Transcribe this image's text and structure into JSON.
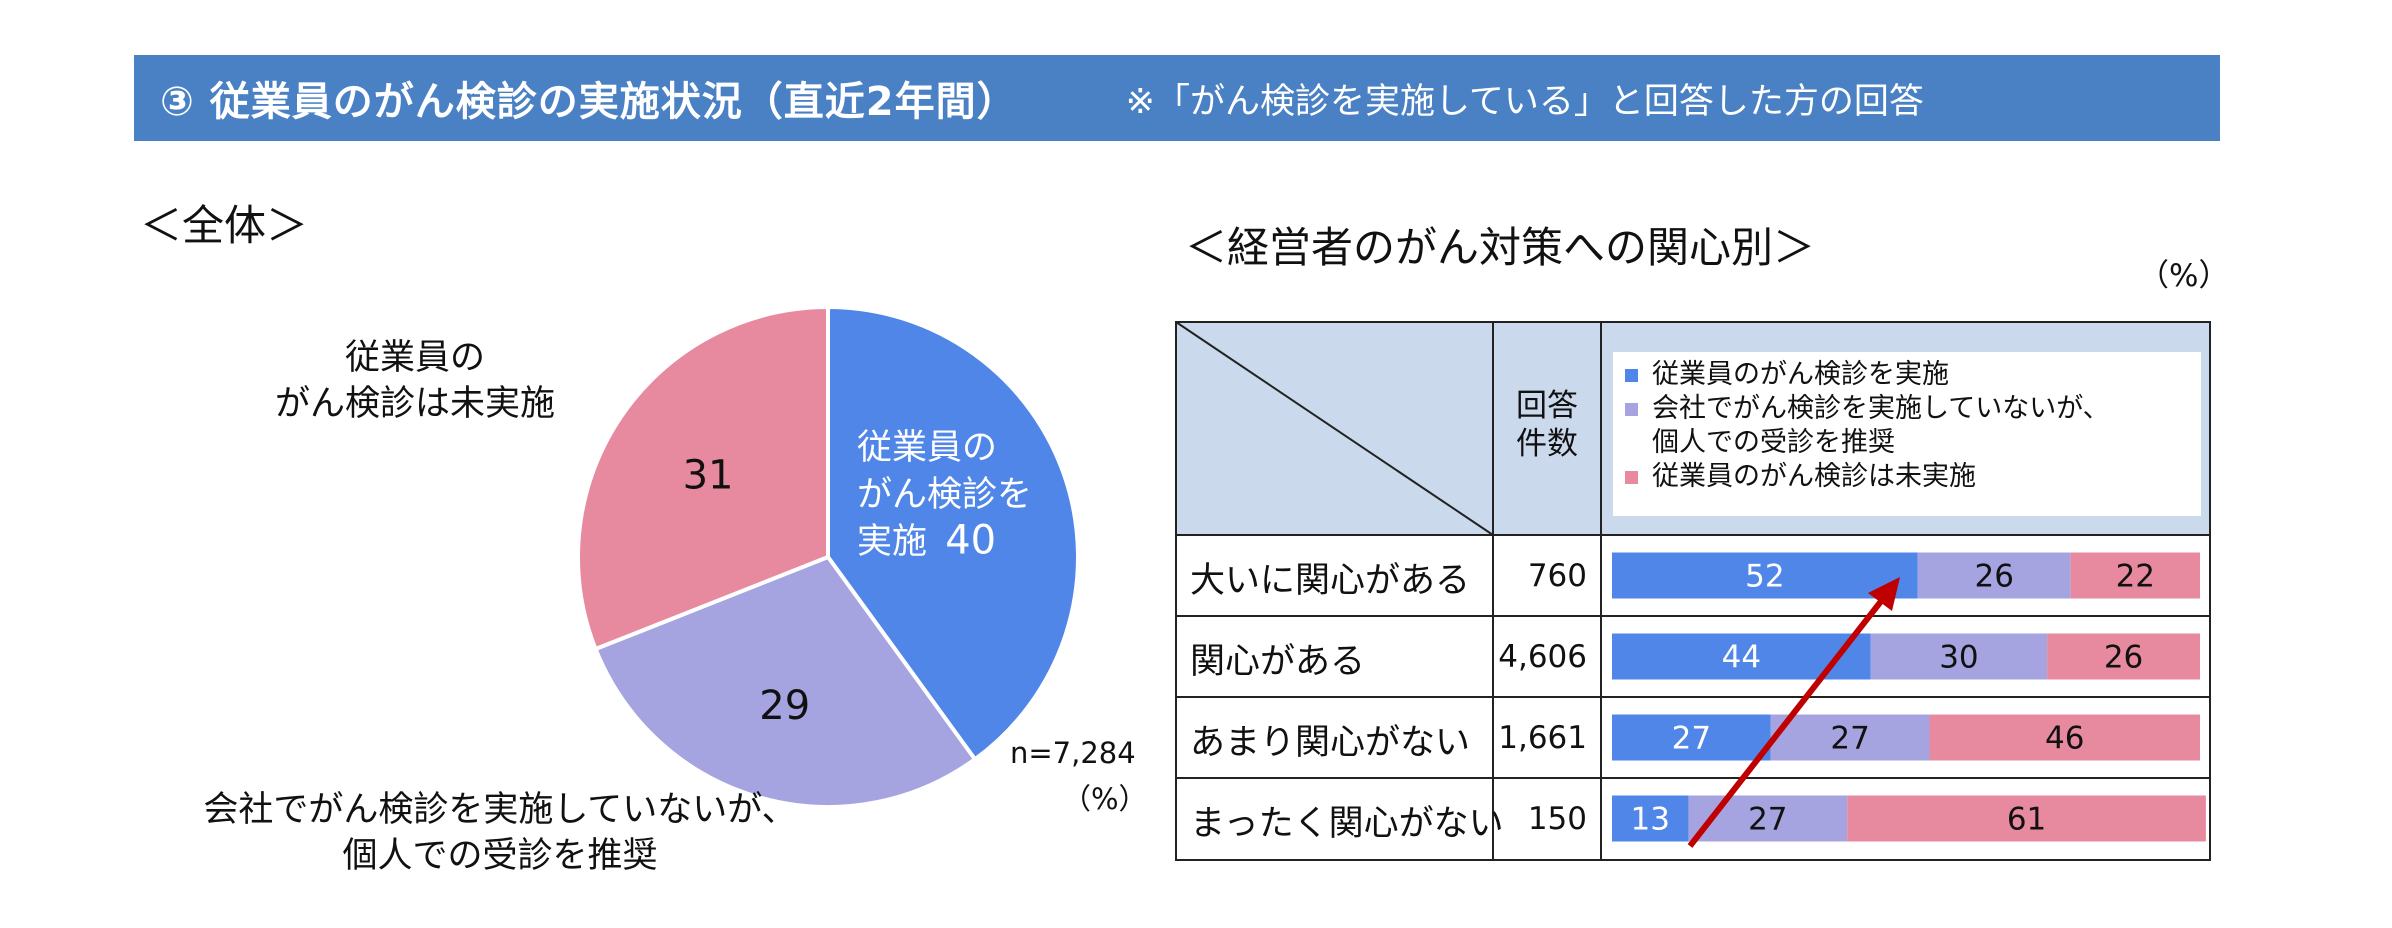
{
  "header": {
    "title": "③ 従業員のがん検診の実施状況（直近2年間）",
    "note": "※「がん検診を実施している」と回答した方の回答"
  },
  "left": {
    "heading": "＜全体＞",
    "n_label": "n=7,284",
    "unit": "（%）",
    "label_not_done": [
      "従業員の",
      "がん検診は未実施"
    ],
    "label_done": [
      "従業員の",
      "がん検診を",
      "実施"
    ],
    "label_recommend": [
      "会社でがん検診を実施していないが、",
      "個人での受診を推奨"
    ]
  },
  "right": {
    "heading": "＜経営者のがん対策への関心別＞",
    "unit": "（%）",
    "count_header": [
      "回答",
      "件数"
    ],
    "legend": [
      {
        "lines": [
          "従業員のがん検診を実施"
        ],
        "color": "#4f86e8"
      },
      {
        "lines": [
          "会社でがん検診を実施していないが、",
          "個人での受診を推奨"
        ],
        "color": "#a5a3e0"
      },
      {
        "lines": [
          "従業員のがん検診は未実施"
        ],
        "color": "#e88a9f"
      }
    ]
  },
  "chart_data": [
    {
      "type": "pie",
      "title": "＜全体＞",
      "labels": [
        "従業員のがん検診を実施",
        "会社でがん検診を実施していないが、個人での受診を推奨",
        "従業員のがん検診は未実施"
      ],
      "values": [
        40,
        29,
        31
      ],
      "colors": [
        "#4f86e8",
        "#a5a3e0",
        "#e88a9f"
      ]
    },
    {
      "type": "bar",
      "orientation": "horizontal",
      "stacked": true,
      "title": "＜経営者のがん対策への関心別＞",
      "categories": [
        "大いに関心がある",
        "関心がある",
        "あまり関心がない",
        "まったく関心がない"
      ],
      "counts": [
        "760",
        "4,606",
        "1,661",
        "150"
      ],
      "series": [
        {
          "name": "従業員のがん検診を実施",
          "values": [
            52,
            44,
            27,
            13
          ],
          "color": "#4f86e8"
        },
        {
          "name": "会社でがん検診を実施していないが、個人での受診を推奨",
          "values": [
            26,
            30,
            27,
            27
          ],
          "color": "#a5a3e0"
        },
        {
          "name": "従業員のがん検診は未実施",
          "values": [
            22,
            26,
            46,
            61
          ],
          "color": "#e88a9f"
        }
      ],
      "xlim": [
        0,
        100
      ]
    }
  ]
}
